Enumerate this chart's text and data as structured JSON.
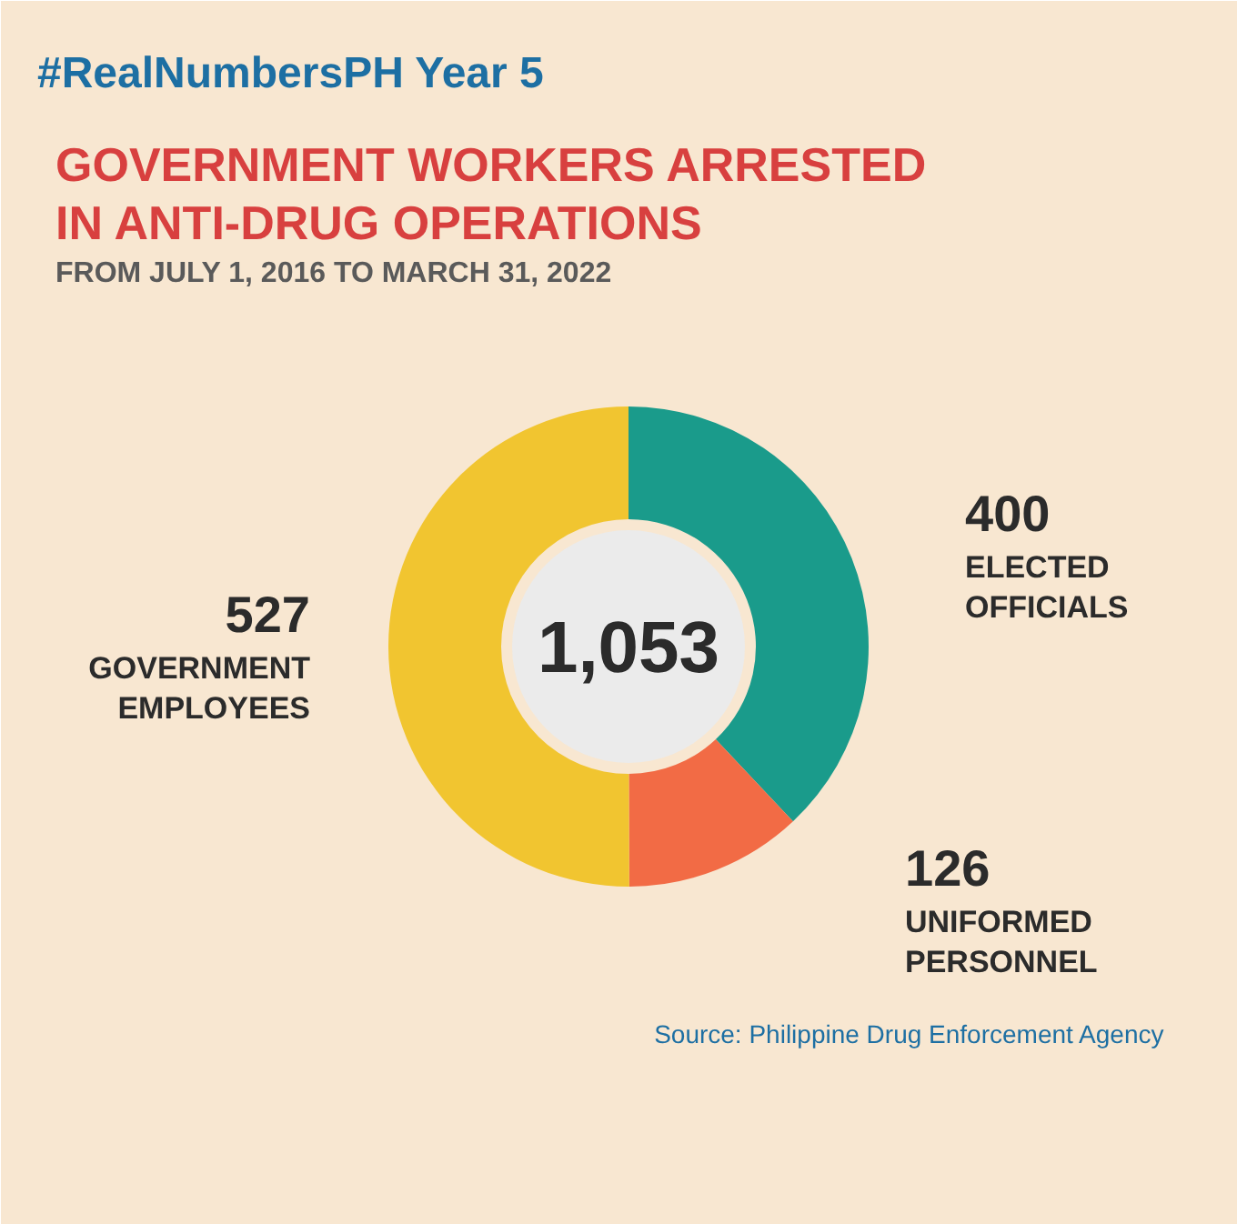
{
  "chart_data": {
    "type": "donut",
    "title": "GOVERNMENT WORKERS ARRESTED IN ANTI-DRUG OPERATIONS",
    "subtitle": "FROM JULY 1, 2016 TO MARCH 31, 2022",
    "categories": [
      "ELECTED OFFICIALS",
      "UNIFORMED PERSONNEL",
      "GOVERNMENT EMPLOYEES"
    ],
    "values": [
      400,
      126,
      527
    ],
    "colors": [
      "#1a9b8b",
      "#f26b45",
      "#f1c530"
    ],
    "data_labels": true,
    "annotations": [
      "#RealNumbersPH Year 5",
      "1,053",
      "Source: Philippine Drug Enforcement Agency"
    ]
  }
}
